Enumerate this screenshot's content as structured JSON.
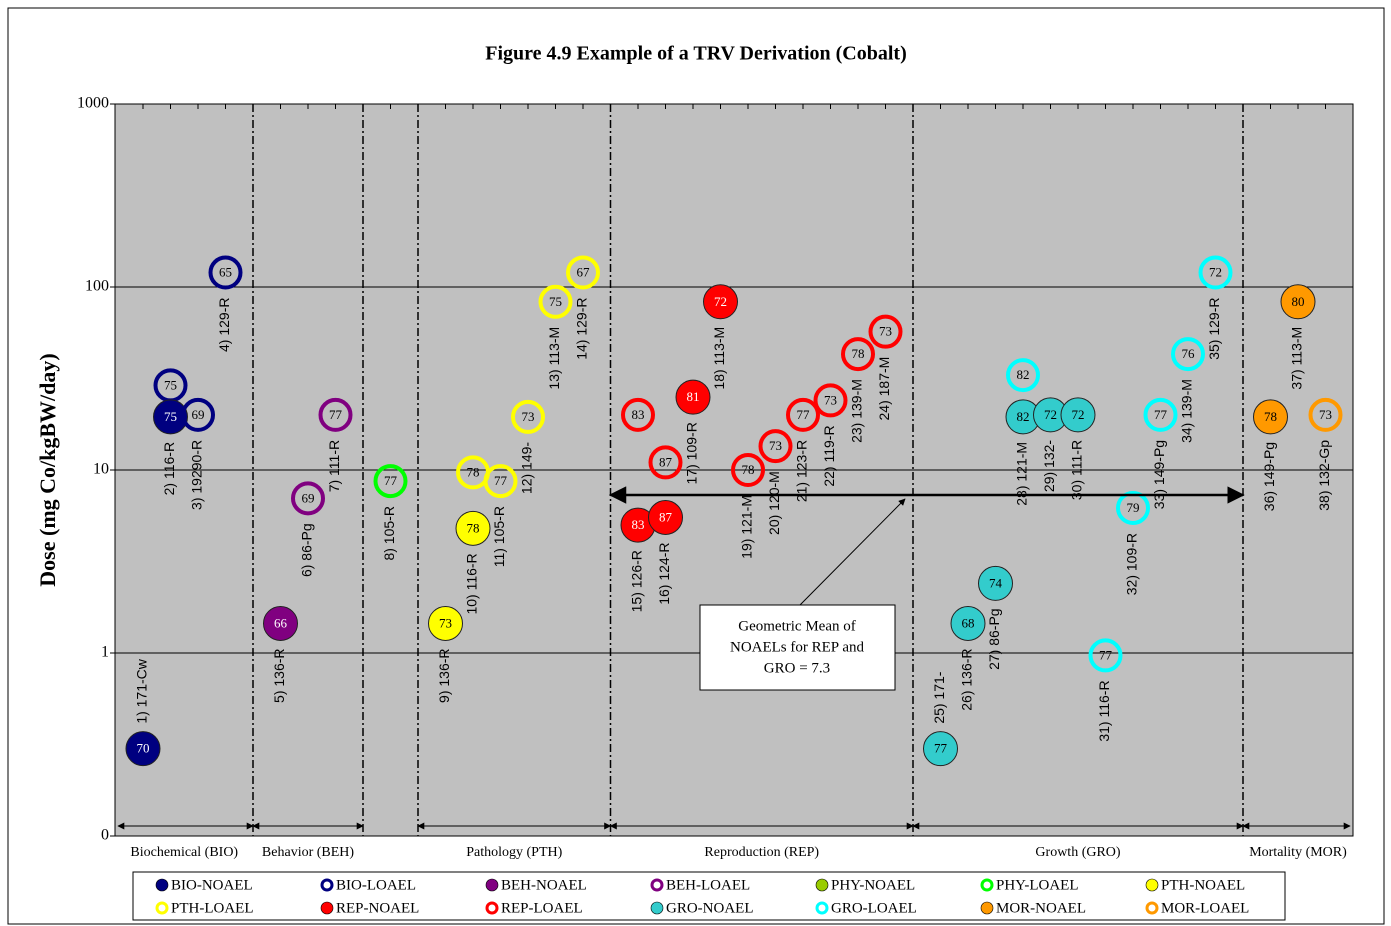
{
  "chart_data": {
    "type": "scatter",
    "title": "Figure 4.9  Example of a TRV Derivation (Cobalt)",
    "y_label": "Dose (mg Co/kgBW/day)",
    "log_y": true,
    "grid": true,
    "ylim": [
      0.1,
      1000
    ],
    "yticks": [
      {
        "value": 0.1,
        "label": "0"
      },
      1,
      10,
      100,
      1000
    ],
    "series": [
      {
        "name": "BIO-NOAEL",
        "color": "#000080",
        "filled": true
      },
      {
        "name": "BIO-LOAEL",
        "color": "#000080",
        "filled": false
      },
      {
        "name": "BEH-NOAEL",
        "color": "#800080",
        "filled": true
      },
      {
        "name": "BEH-LOAEL",
        "color": "#800080",
        "filled": false
      },
      {
        "name": "PHY-NOAEL",
        "color": "#99cc00",
        "filled": true
      },
      {
        "name": "PHY-LOAEL",
        "color": "#00ff00",
        "filled": false
      },
      {
        "name": "PTH-NOAEL",
        "color": "#ffff00",
        "filled": true
      },
      {
        "name": "PTH-LOAEL",
        "color": "#ffff00",
        "filled": false
      },
      {
        "name": "REP-NOAEL",
        "color": "#ff0000",
        "filled": true
      },
      {
        "name": "REP-LOAEL",
        "color": "#ff0000",
        "filled": false
      },
      {
        "name": "GRO-NOAEL",
        "color": "#33cccc",
        "filled": true
      },
      {
        "name": "GRO-LOAEL",
        "color": "#00ffff",
        "filled": false
      },
      {
        "name": "MOR-NOAEL",
        "color": "#ff9900",
        "filled": true
      },
      {
        "name": "MOR-LOAEL",
        "color": "#ff9900",
        "filled": false
      }
    ],
    "sections": [
      {
        "label": "Biochemical (BIO)",
        "studies": [
          {
            "label": "1) 171-Cw",
            "points": [
              {
                "kind": "BIO-NOAEL",
                "value": 0.3,
                "score": 70
              }
            ]
          },
          {
            "label": "2) 116-R",
            "points": [
              {
                "kind": "BIO-LOAEL",
                "value": 29,
                "score": 75
              },
              {
                "kind": "BIO-NOAEL",
                "value": 19.5,
                "score": 75
              }
            ]
          },
          {
            "label": "3) 19290-R",
            "points": [
              {
                "kind": "BIO-LOAEL",
                "value": 20,
                "score": 69
              }
            ]
          },
          {
            "label": "4) 129-R",
            "points": [
              {
                "kind": "BIO-LOAEL",
                "value": 120,
                "score": 65
              }
            ]
          }
        ]
      },
      {
        "label": "Behavior (BEH)",
        "studies": [
          {
            "label": "5) 136-R",
            "points": [
              {
                "kind": "BEH-NOAEL",
                "value": 1.45,
                "score": 66
              }
            ]
          },
          {
            "label": "6) 86-Pg",
            "points": [
              {
                "kind": "BEH-LOAEL",
                "value": 7,
                "score": 69
              }
            ]
          },
          {
            "label": "7) 111-R",
            "points": [
              {
                "kind": "BEH-LOAEL",
                "value": 20,
                "score": 77
              }
            ]
          }
        ]
      },
      {
        "studies": [
          {
            "label": "8) 105-R",
            "points": [
              {
                "kind": "PHY-LOAEL",
                "value": 8.7,
                "score": 77
              }
            ]
          }
        ]
      },
      {
        "label": "Pathology (PTH)",
        "studies": [
          {
            "label": "9) 136-R",
            "points": [
              {
                "kind": "PTH-NOAEL",
                "value": 1.45,
                "score": 73
              }
            ]
          },
          {
            "label": "10) 116-R",
            "points": [
              {
                "kind": "PTH-LOAEL",
                "value": 9.7,
                "score": 78
              },
              {
                "kind": "PTH-NOAEL",
                "value": 4.8,
                "score": 78
              }
            ]
          },
          {
            "label": "11) 105-R",
            "points": [
              {
                "kind": "PTH-LOAEL",
                "value": 8.7,
                "score": 77
              }
            ]
          },
          {
            "label": "12) 149-",
            "points": [
              {
                "kind": "PTH-LOAEL",
                "value": 19.5,
                "score": 73
              }
            ]
          },
          {
            "label": "13) 113-M",
            "points": [
              {
                "kind": "PTH-LOAEL",
                "value": 83,
                "score": 75
              }
            ]
          },
          {
            "label": "14) 129-R",
            "points": [
              {
                "kind": "PTH-LOAEL",
                "value": 120,
                "score": 67
              }
            ]
          }
        ]
      },
      {
        "label": "Reproduction (REP)",
        "studies": [
          {
            "label": "15) 126-R",
            "points": [
              {
                "kind": "REP-LOAEL",
                "value": 20,
                "score": 83
              },
              {
                "kind": "REP-NOAEL",
                "value": 5,
                "score": 83
              }
            ]
          },
          {
            "label": "16) 124-R",
            "points": [
              {
                "kind": "REP-LOAEL",
                "value": 11,
                "score": 87
              },
              {
                "kind": "REP-NOAEL",
                "value": 5.5,
                "score": 87
              }
            ]
          },
          {
            "label": "17) 109-R",
            "points": [
              {
                "kind": "REP-NOAEL",
                "value": 25,
                "score": 81
              }
            ]
          },
          {
            "label": "18) 113-M",
            "points": [
              {
                "kind": "REP-NOAEL",
                "value": 83,
                "score": 72
              }
            ]
          },
          {
            "label": "19) 121-M",
            "points": [
              {
                "kind": "REP-LOAEL",
                "value": 10,
                "score": 78
              }
            ]
          },
          {
            "label": "20) 120-M",
            "points": [
              {
                "kind": "REP-LOAEL",
                "value": 13.5,
                "score": 73
              }
            ]
          },
          {
            "label": "21) 123-R",
            "points": [
              {
                "kind": "REP-LOAEL",
                "value": 20,
                "score": 77
              }
            ]
          },
          {
            "label": "22) 119-R",
            "points": [
              {
                "kind": "REP-LOAEL",
                "value": 24,
                "score": 73
              }
            ]
          },
          {
            "label": "23) 139-M",
            "points": [
              {
                "kind": "REP-LOAEL",
                "value": 43,
                "score": 78
              }
            ]
          },
          {
            "label": "24) 187-M",
            "points": [
              {
                "kind": "REP-LOAEL",
                "value": 57,
                "score": 73
              }
            ]
          }
        ]
      },
      {
        "label": "Growth (GRO)",
        "studies": [
          {
            "label": "25) 171-",
            "points": [
              {
                "kind": "GRO-NOAEL",
                "value": 0.3,
                "score": 77
              }
            ]
          },
          {
            "label": "26) 136-R",
            "points": [
              {
                "kind": "GRO-NOAEL",
                "value": 1.45,
                "score": 68
              }
            ]
          },
          {
            "label": "27) 86-Pg",
            "points": [
              {
                "kind": "GRO-NOAEL",
                "value": 2.4,
                "score": 74
              }
            ]
          },
          {
            "label": "28) 121-M",
            "points": [
              {
                "kind": "GRO-LOAEL",
                "value": 33,
                "score": 82
              },
              {
                "kind": "GRO-NOAEL",
                "value": 19.5,
                "score": 82
              }
            ]
          },
          {
            "label": "29) 132-",
            "points": [
              {
                "kind": "GRO-NOAEL",
                "value": 20,
                "score": 72
              }
            ]
          },
          {
            "label": "30) 111-R",
            "points": [
              {
                "kind": "GRO-NOAEL",
                "value": 20,
                "score": 72
              }
            ]
          },
          {
            "label": "31) 116-R",
            "points": [
              {
                "kind": "GRO-LOAEL",
                "value": 0.97,
                "score": 77
              }
            ]
          },
          {
            "label": "32) 109-R",
            "points": [
              {
                "kind": "GRO-LOAEL",
                "value": 6.2,
                "score": 79
              }
            ]
          },
          {
            "label": "33) 149-Pg",
            "points": [
              {
                "kind": "GRO-LOAEL",
                "value": 20,
                "score": 77
              }
            ]
          },
          {
            "label": "34) 139-M",
            "points": [
              {
                "kind": "GRO-LOAEL",
                "value": 43,
                "score": 76
              }
            ]
          },
          {
            "label": "35) 129-R",
            "points": [
              {
                "kind": "GRO-LOAEL",
                "value": 120,
                "score": 72
              }
            ]
          }
        ]
      },
      {
        "label": "Mortality (MOR)",
        "studies": [
          {
            "label": "36) 149-Pg",
            "points": [
              {
                "kind": "MOR-NOAEL",
                "value": 19.5,
                "score": 78
              }
            ]
          },
          {
            "label": "37) 113-M",
            "points": [
              {
                "kind": "MOR-NOAEL",
                "value": 83,
                "score": 80
              }
            ]
          },
          {
            "label": "38) 132-Gp",
            "points": [
              {
                "kind": "MOR-LOAEL",
                "value": 20,
                "score": 73
              }
            ]
          }
        ]
      }
    ],
    "annotation": [
      "Geometric Mean of",
      "NOAELs for REP and",
      "GRO = 7.3"
    ],
    "mean_value": 7.3
  }
}
